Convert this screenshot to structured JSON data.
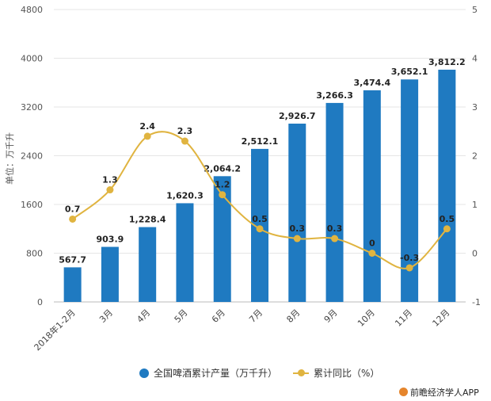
{
  "chart_data": {
    "type": "bar",
    "categories": [
      "2018年1-2月",
      "3月",
      "4月",
      "5月",
      "6月",
      "7月",
      "8月",
      "9月",
      "10月",
      "11月",
      "12月"
    ],
    "series": [
      {
        "name": "全国啤酒累计产量（万千升）",
        "type": "bar",
        "axis": "left",
        "values": [
          567.7,
          903.9,
          1228.4,
          1620.3,
          2064.2,
          2512.1,
          2926.7,
          3266.3,
          3474.4,
          3652.1,
          3812.2
        ],
        "labels": [
          "567.7",
          "903.9",
          "1,228.4",
          "1,620.3",
          "2,064.2",
          "2,512.1",
          "2,926.7",
          "3,266.3",
          "3,474.4",
          "3,652.1",
          "3,812.2"
        ],
        "color": "#1f7ac1"
      },
      {
        "name": "累计同比（%）",
        "type": "line",
        "axis": "right",
        "values": [
          0.7,
          1.3,
          2.4,
          2.3,
          1.2,
          0.5,
          0.3,
          0.3,
          0,
          -0.3,
          0.5
        ],
        "labels": [
          "0.7",
          "1.3",
          "2.4",
          "2.3",
          "1.2",
          "0.5",
          "0.3",
          "0.3",
          "0",
          "-0.3",
          "0.5"
        ],
        "color": "#e0b440"
      }
    ],
    "ylabel": "单位：万千升",
    "ylim": [
      0,
      4800
    ],
    "yticks": [
      "0",
      "800",
      "1600",
      "2400",
      "3200",
      "4000",
      "4800"
    ],
    "y2lim": [
      -1,
      5
    ],
    "y2ticks": [
      "-1",
      "0",
      "1",
      "2",
      "3",
      "4",
      "5"
    ],
    "grid": true,
    "legend": "bottom"
  },
  "footer": {
    "brand": "前瞻经济学人APP"
  }
}
